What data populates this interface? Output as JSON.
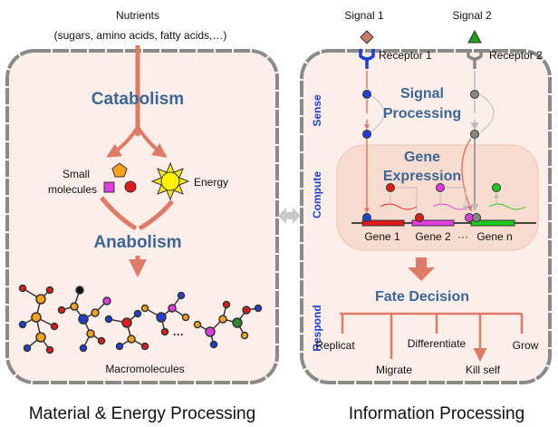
{
  "left": {
    "input_title": "Nutrients",
    "input_subtitle": "(sugars, amino acids, fatty acids,…)",
    "catabolism": "Catabolism",
    "small_molecules": [
      "Small",
      "molecules"
    ],
    "energy": "Energy",
    "anabolism": "Anabolism",
    "ellipsis": "···",
    "macromolecules": "Macromolecules",
    "caption": "Material & Energy Processing"
  },
  "right": {
    "signals": [
      "Signal 1",
      "Signal 2"
    ],
    "receptors": [
      "Receptor 1",
      "Receptor 2"
    ],
    "stages": [
      "Sense",
      "Compute",
      "Respond"
    ],
    "signal_processing": [
      "Signal",
      "Processing"
    ],
    "gene_expression": [
      "Gene",
      "Expression"
    ],
    "genes": [
      "Gene 1",
      "Gene 2",
      "Gene n"
    ],
    "gene_ellipsis": "···",
    "fate_decision": "Fate Decision",
    "fates": [
      "Replicat",
      "Differentiate",
      "Grow",
      "Migrate",
      "Kill self"
    ],
    "caption": "Information Processing"
  }
}
